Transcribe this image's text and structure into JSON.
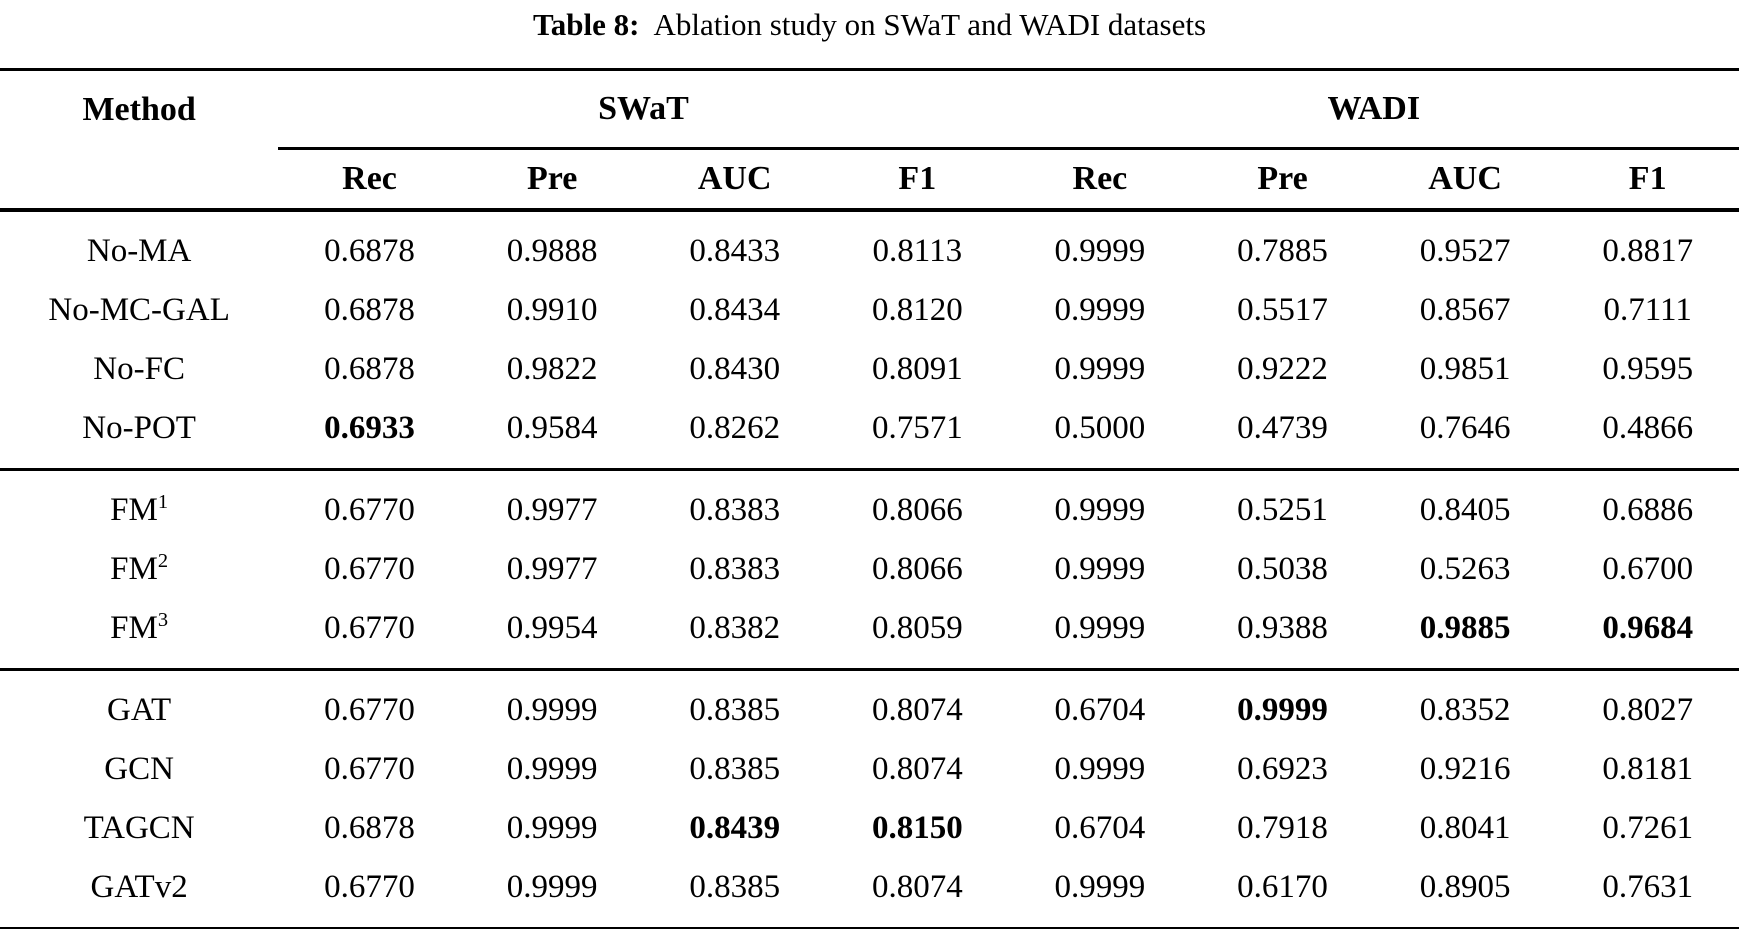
{
  "caption": {
    "label": "Table 8:",
    "text": "Ablation study on SWaT and WADI datasets"
  },
  "table": {
    "method_header": "Method",
    "group_headers": [
      "SWaT",
      "WADI"
    ],
    "metric_headers": [
      "Rec",
      "Pre",
      "AUC",
      "F1",
      "Rec",
      "Pre",
      "AUC",
      "F1"
    ],
    "groups": [
      {
        "rows": [
          {
            "method": "No-MA",
            "values": [
              "0.6878",
              "0.9888",
              "0.8433",
              "0.8113",
              "0.9999",
              "0.7885",
              "0.9527",
              "0.8817"
            ],
            "bold": []
          },
          {
            "method": "No-MC-GAL",
            "values": [
              "0.6878",
              "0.9910",
              "0.8434",
              "0.8120",
              "0.9999",
              "0.5517",
              "0.8567",
              "0.7111"
            ],
            "bold": []
          },
          {
            "method": "No-FC",
            "values": [
              "0.6878",
              "0.9822",
              "0.8430",
              "0.8091",
              "0.9999",
              "0.9222",
              "0.9851",
              "0.9595"
            ],
            "bold": []
          },
          {
            "method": "No-POT",
            "values": [
              "0.6933",
              "0.9584",
              "0.8262",
              "0.7571",
              "0.5000",
              "0.4739",
              "0.7646",
              "0.4866"
            ],
            "bold": [
              0
            ]
          }
        ]
      },
      {
        "rows": [
          {
            "method": "FM",
            "sup": "1",
            "values": [
              "0.6770",
              "0.9977",
              "0.8383",
              "0.8066",
              "0.9999",
              "0.5251",
              "0.8405",
              "0.6886"
            ],
            "bold": []
          },
          {
            "method": "FM",
            "sup": "2",
            "values": [
              "0.6770",
              "0.9977",
              "0.8383",
              "0.8066",
              "0.9999",
              "0.5038",
              "0.5263",
              "0.6700"
            ],
            "bold": []
          },
          {
            "method": "FM",
            "sup": "3",
            "values": [
              "0.6770",
              "0.9954",
              "0.8382",
              "0.8059",
              "0.9999",
              "0.9388",
              "0.9885",
              "0.9684"
            ],
            "bold": [
              6,
              7
            ]
          }
        ]
      },
      {
        "rows": [
          {
            "method": "GAT",
            "values": [
              "0.6770",
              "0.9999",
              "0.8385",
              "0.8074",
              "0.6704",
              "0.9999",
              "0.8352",
              "0.8027"
            ],
            "bold": [
              5
            ]
          },
          {
            "method": "GCN",
            "values": [
              "0.6770",
              "0.9999",
              "0.8385",
              "0.8074",
              "0.9999",
              "0.6923",
              "0.9216",
              "0.8181"
            ],
            "bold": []
          },
          {
            "method": "TAGCN",
            "values": [
              "0.6878",
              "0.9999",
              "0.8439",
              "0.8150",
              "0.6704",
              "0.7918",
              "0.8041",
              "0.7261"
            ],
            "bold": [
              2,
              3
            ]
          },
          {
            "method": "GATv2",
            "values": [
              "0.6770",
              "0.9999",
              "0.8385",
              "0.8074",
              "0.9999",
              "0.6170",
              "0.8905",
              "0.7631"
            ],
            "bold": []
          }
        ]
      }
    ]
  }
}
